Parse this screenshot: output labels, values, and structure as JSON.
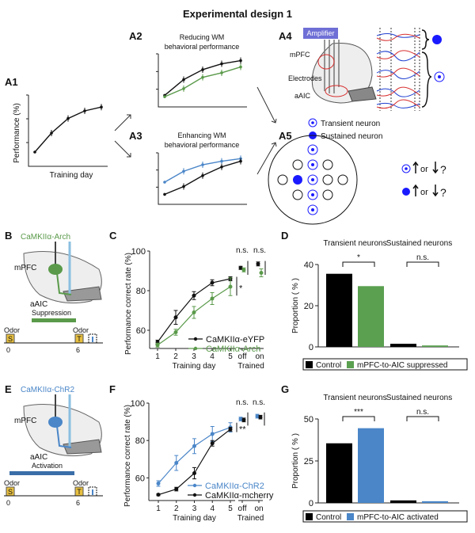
{
  "title": "Experimental design 1",
  "colors": {
    "black": "#111111",
    "green": "#5a9a4a",
    "blue": "#4a86c8",
    "amplifier": "#6f6fd6",
    "red": "#d83030"
  },
  "panels": {
    "A1": {
      "label": "A1",
      "ylabel": "Performance (%)",
      "xlabel": "Training day"
    },
    "A2": {
      "label": "A2",
      "title1": "Reducing WM",
      "title2": "behavioral performance"
    },
    "A3": {
      "label": "A3",
      "title1": "Enhancing WM",
      "title2": "behavioral performance"
    },
    "A4": {
      "label": "A4",
      "amplifier": "Amplifier",
      "mpfc": "mPFC",
      "electrodes": "Electrodes",
      "aaic": "aAIC"
    },
    "A5": {
      "label": "A5",
      "legend_transient": "Transient neuron",
      "legend_sustained": "Sustained neuron",
      "or1": "or",
      "q1": "?",
      "or2": "or",
      "q2": "?"
    },
    "B": {
      "label": "B",
      "construct": "CaMKIIα-Arch",
      "mpfc": "mPFC",
      "aaic": "aAIC",
      "manipulation": "Suppression",
      "odor1": "Odor",
      "odor2": "Odor",
      "s": "S",
      "t": "T",
      "t0": "0",
      "t6": "6"
    },
    "C": {
      "label": "C"
    },
    "D": {
      "label": "D"
    },
    "E": {
      "label": "E",
      "construct": "CaMKIIα-ChR2",
      "mpfc": "mPFC",
      "aaic": "aAIC",
      "manipulation": "Activation",
      "odor1": "Odor",
      "odor2": "Odor",
      "s": "S",
      "t": "T",
      "t0": "0",
      "t6": "6"
    },
    "F": {
      "label": "F"
    },
    "G": {
      "label": "G"
    }
  },
  "chart_data": [
    {
      "id": "A1",
      "type": "line",
      "xlabel": "Training day",
      "ylabel": "Performance (%)",
      "series": [
        {
          "color": "#111111",
          "values": [
            0.15,
            0.45,
            0.68,
            0.8,
            0.86
          ]
        }
      ]
    },
    {
      "id": "A2",
      "type": "line",
      "series": [
        {
          "color": "#111111",
          "values": [
            0.15,
            0.5,
            0.72,
            0.85,
            0.92
          ]
        },
        {
          "color": "#5a9a4a",
          "values": [
            0.12,
            0.3,
            0.55,
            0.65,
            0.78
          ]
        }
      ]
    },
    {
      "id": "A3",
      "type": "line",
      "series": [
        {
          "color": "#4a86c8",
          "values": [
            0.4,
            0.65,
            0.8,
            0.88,
            0.94
          ]
        },
        {
          "color": "#111111",
          "values": [
            0.12,
            0.3,
            0.55,
            0.75,
            0.88
          ]
        }
      ]
    },
    {
      "id": "C",
      "type": "line",
      "ylabel": "Performance correct rate (%)",
      "xlabel": "Training day",
      "xlabel2": "Trained",
      "ylim": [
        50,
        100
      ],
      "yticks": [
        "60",
        "80",
        "100"
      ],
      "categories": [
        "1",
        "2",
        "3",
        "4",
        "5",
        "off",
        "on"
      ],
      "series": [
        {
          "name": "CaMKIIα-eYFP",
          "color": "#111111",
          "values": [
            54,
            66.5,
            77.5,
            84,
            86,
            91.5,
            93.5
          ],
          "errors": [
            1,
            3.5,
            2,
            1.5,
            1,
            0.8,
            1
          ]
        },
        {
          "name": "CaMKIIα-Arch",
          "color": "#5a9a4a",
          "values": [
            52.5,
            59,
            69,
            76,
            82,
            90.5,
            89
          ],
          "errors": [
            1,
            1.5,
            3,
            3,
            4.5,
            1,
            2
          ]
        }
      ],
      "annotations": [
        {
          "text": "*",
          "at": "5"
        },
        {
          "text": "n.s.",
          "at": "off"
        },
        {
          "text": "n.s.",
          "at": "on"
        }
      ]
    },
    {
      "id": "D",
      "type": "bar",
      "ylabel": "Proportion ( % )",
      "ylim": [
        0,
        40
      ],
      "yticks": [
        "0",
        "20",
        "40"
      ],
      "categories": [
        "Transient neurons",
        "Sustained neurons"
      ],
      "series": [
        {
          "name": "Control",
          "color": "#000000",
          "values": [
            35.5,
            1.5
          ]
        },
        {
          "name": "mPFC-to-AIC suppressed",
          "color": "#5aa050",
          "values": [
            29.5,
            0.7
          ]
        }
      ],
      "annotations": [
        {
          "text": "*",
          "at": "Transient neurons"
        },
        {
          "text": "n.s.",
          "at": "Sustained neurons"
        }
      ]
    },
    {
      "id": "F",
      "type": "line",
      "ylabel": "Performance correct rate (%)",
      "xlabel": "Training day",
      "xlabel2": "Trained",
      "ylim": [
        50,
        100
      ],
      "yticks": [
        "60",
        "80",
        "100"
      ],
      "categories": [
        "1",
        "2",
        "3",
        "4",
        "5",
        "off",
        "on"
      ],
      "series": [
        {
          "name": "CaMKIIα-ChR2",
          "color": "#4a86c8",
          "values": [
            57,
            68,
            77,
            83.5,
            87,
            91.5,
            93
          ],
          "errors": [
            1.5,
            4,
            4,
            4,
            2.5,
            1,
            1
          ]
        },
        {
          "name": "CaMKIIα-mcherry",
          "color": "#111111",
          "values": [
            51,
            54,
            62.5,
            78.5,
            86,
            91,
            92.5
          ],
          "errors": [
            0.5,
            1,
            3,
            1.5,
            1,
            1,
            1
          ]
        }
      ],
      "annotations": [
        {
          "text": "**",
          "at": "5"
        },
        {
          "text": "n.s.",
          "at": "off"
        },
        {
          "text": "n.s.",
          "at": "on"
        }
      ]
    },
    {
      "id": "G",
      "type": "bar",
      "ylabel": "Proportion ( % )",
      "ylim": [
        0,
        50
      ],
      "yticks": [
        "0",
        "25",
        "50"
      ],
      "categories": [
        "Transient neurons",
        "Sustained neurons"
      ],
      "series": [
        {
          "name": "Control",
          "color": "#000000",
          "values": [
            35.5,
            1.5
          ]
        },
        {
          "name": "mPFC-to-AIC activated",
          "color": "#4a86c8",
          "values": [
            44.5,
            1.0
          ]
        }
      ],
      "annotations": [
        {
          "text": "***",
          "at": "Transient neurons"
        },
        {
          "text": "n.s.",
          "at": "Sustained neurons"
        }
      ]
    }
  ]
}
